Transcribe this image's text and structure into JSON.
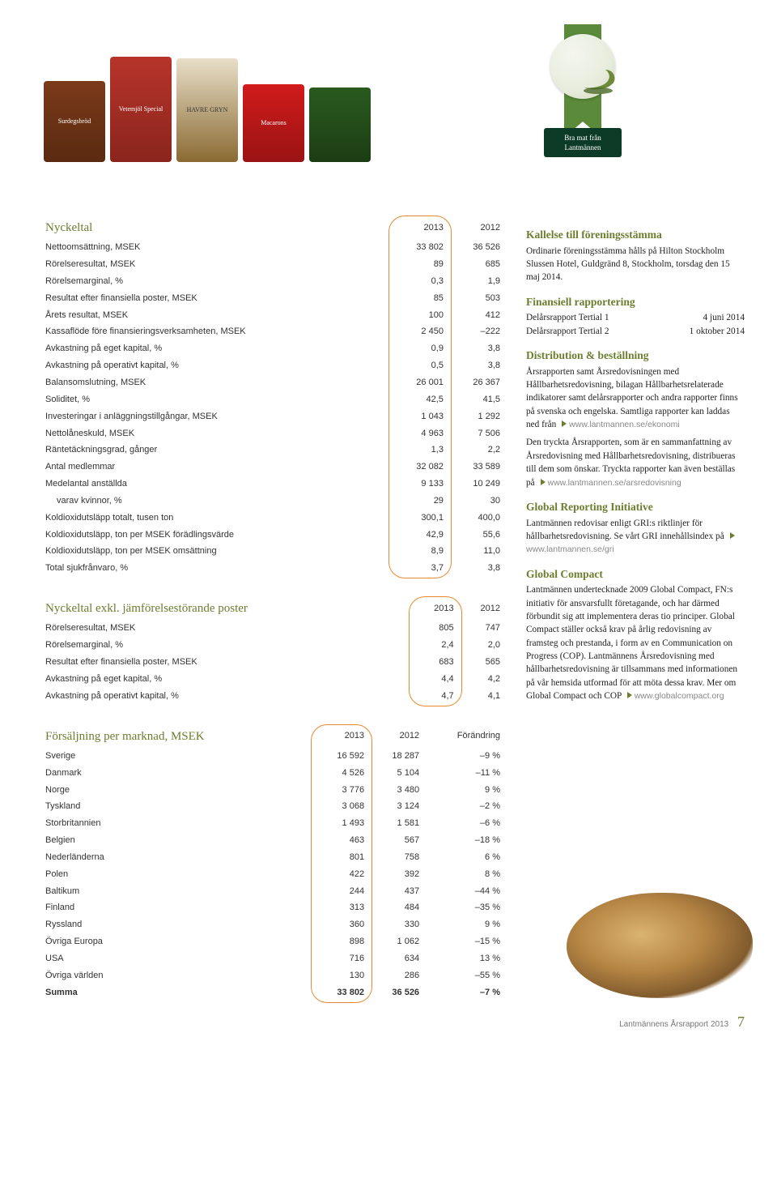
{
  "ribbon_label": "Bra mat från Lantmännen",
  "products": [
    "Surdegsbröd",
    "Vetemjöl Special",
    "HAVRE GRYN",
    "Macarons",
    ""
  ],
  "table1": {
    "title": "Nyckeltal",
    "years": [
      "2013",
      "2012"
    ],
    "rows": [
      [
        "Nettoomsättning, MSEK",
        "33 802",
        "36 526"
      ],
      [
        "Rörelseresultat, MSEK",
        "89",
        "685"
      ],
      [
        "Rörelsemarginal, %",
        "0,3",
        "1,9"
      ],
      [
        "Resultat efter finansiella poster, MSEK",
        "85",
        "503"
      ],
      [
        "Årets resultat, MSEK",
        "100",
        "412"
      ],
      [
        "Kassaflöde före finansieringsverksamheten, MSEK",
        "2 450",
        "–222"
      ],
      [
        "Avkastning på eget kapital, %",
        "0,9",
        "3,8"
      ],
      [
        "Avkastning på operativt kapital, %",
        "0,5",
        "3,8"
      ],
      [
        "Balansomslutning, MSEK",
        "26 001",
        "26 367"
      ],
      [
        "Soliditet, %",
        "42,5",
        "41,5"
      ],
      [
        "Investeringar i anläggningstillgångar, MSEK",
        "1 043",
        "1 292"
      ],
      [
        "Nettolåneskuld, MSEK",
        "4 963",
        "7 506"
      ],
      [
        "Räntetäckningsgrad, gånger",
        "1,3",
        "2,2"
      ],
      [
        "Antal medlemmar",
        "32 082",
        "33 589"
      ],
      [
        "Medelantal anställda",
        "9 133",
        "10 249"
      ],
      [
        "varav kvinnor, %",
        "29",
        "30",
        "indent"
      ],
      [
        "Koldioxidutsläpp totalt, tusen ton",
        "300,1",
        "400,0"
      ],
      [
        "Koldioxidutsläpp, ton per MSEK förädlingsvärde",
        "42,9",
        "55,6"
      ],
      [
        "Koldioxidutsläpp, ton per MSEK omsättning",
        "8,9",
        "11,0"
      ],
      [
        "Total sjukfrånvaro, %",
        "3,7",
        "3,8"
      ]
    ]
  },
  "table2": {
    "title": "Nyckeltal exkl. jämförelsestörande poster",
    "years": [
      "2013",
      "2012"
    ],
    "rows": [
      [
        "Rörelseresultat, MSEK",
        "805",
        "747"
      ],
      [
        "Rörelsemarginal, %",
        "2,4",
        "2,0"
      ],
      [
        "Resultat efter finansiella poster, MSEK",
        "683",
        "565"
      ],
      [
        "Avkastning på eget kapital, %",
        "4,4",
        "4,2"
      ],
      [
        "Avkastning på operativt kapital, %",
        "4,7",
        "4,1"
      ]
    ]
  },
  "table3": {
    "title": "Försäljning per marknad, MSEK",
    "headers": [
      "",
      "2013",
      "2012",
      "Förändring"
    ],
    "rows": [
      [
        "Sverige",
        "16 592",
        "18 287",
        "–9 %"
      ],
      [
        "Danmark",
        "4 526",
        "5 104",
        "–11 %"
      ],
      [
        "Norge",
        "3 776",
        "3 480",
        "9 %"
      ],
      [
        "Tyskland",
        "3 068",
        "3 124",
        "–2 %"
      ],
      [
        "Storbritannien",
        "1 493",
        "1 581",
        "–6 %"
      ],
      [
        "Belgien",
        "463",
        "567",
        "–18 %"
      ],
      [
        "Nederländerna",
        "801",
        "758",
        "6 %"
      ],
      [
        "Polen",
        "422",
        "392",
        "8 %"
      ],
      [
        "Baltikum",
        "244",
        "437",
        "–44 %"
      ],
      [
        "Finland",
        "313",
        "484",
        "–35 %"
      ],
      [
        "Ryssland",
        "360",
        "330",
        "9 %"
      ],
      [
        "Övriga Europa",
        "898",
        "1 062",
        "–15 %"
      ],
      [
        "USA",
        "716",
        "634",
        "13 %"
      ],
      [
        "Övriga världen",
        "130",
        "286",
        "–55 %"
      ]
    ],
    "total": [
      "Summa",
      "33 802",
      "36 526",
      "–7 %"
    ]
  },
  "side": {
    "h1": "Kallelse till föreningsstämma",
    "p1": "Ordinarie föreningsstämma hålls på Hilton Stockholm Slussen Hotel, Guldgränd 8, Stockholm, torsdag den 15 maj 2014.",
    "h2": "Finansiell rapportering",
    "r1a": "Delårsrapport Tertial 1",
    "r1b": "4 juni 2014",
    "r2a": "Delårsrapport Tertial 2",
    "r2b": "1 oktober 2014",
    "h3": "Distribution & beställning",
    "p3a": "Årsrapporten samt Årsredovisningen med Hållbarhetsredovisning, bilagan Hållbarhets­relaterade indikatorer samt delårsrapporter och andra rapporter finns på svenska och engelska. Samtliga rapporter kan laddas ned från",
    "u3a": "www.lantmannen.se/ekonomi",
    "p3b": "Den tryckta Årsrapporten, som är en sammanfattning av Årsredovisning med Hållbarhetsredovisning, distribueras till dem som önskar. Tryckta rapporter kan även beställas på",
    "u3b": "www.lantmannen.se/arsredovisning",
    "h4": "Global Reporting Initiative",
    "p4": "Lantmännen redovisar enligt GRI:s riktlinjer för hållbarhetsredovisning. Se vårt GRI innehållsindex på",
    "u4": "www.lantmannen.se/gri",
    "h5": "Global Compact",
    "p5": "Lantmännen undertecknade 2009 Global Compact, FN:s initiativ för ansvarsfullt företagande, och har därmed förbundit sig att implementera deras tio principer. Global Compact ställer också krav på årlig redovisning av framsteg och prestanda, i form av en Communication on Progress (COP). Lantmännens Årsredovisning med hållbarhetsredovisning är tillsammans med informationen på vår hemsida utformad för att möta dessa krav. Mer om Global Compact och COP",
    "u5": "www.globalcompact.org"
  },
  "footer_text": "Lantmännens Årsrapport 2013",
  "page_number": "7",
  "pill_color": "#e68a2e",
  "accent": "#6c7d2f"
}
